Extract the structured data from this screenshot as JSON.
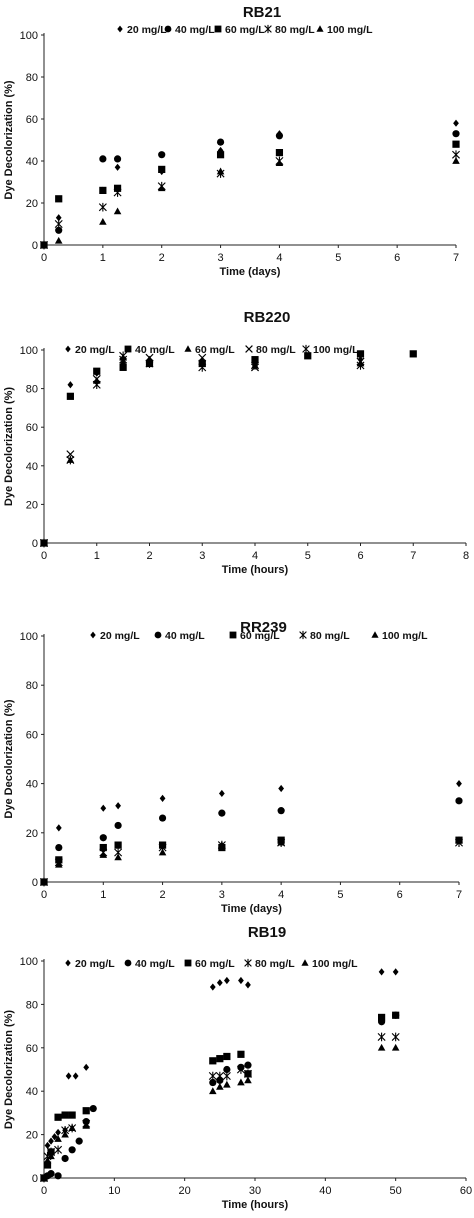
{
  "chart_data": [
    {
      "type": "scatter",
      "title": "RB21",
      "xlabel": "Time (days)",
      "ylabel": "Dye Decolorization (%)",
      "xlim": [
        0,
        7
      ],
      "ylim": [
        0,
        100
      ],
      "xticks": [
        0,
        1,
        2,
        3,
        4,
        5,
        6,
        7
      ],
      "yticks": [
        0,
        20,
        40,
        60,
        80,
        100
      ],
      "legend_position": "top",
      "series": [
        {
          "name": "20 mg/L",
          "marker": "diamond",
          "points": [
            [
              0,
              0
            ],
            [
              0.25,
              13
            ],
            [
              1,
              26
            ],
            [
              1.25,
              37
            ],
            [
              2,
              35
            ],
            [
              3,
              45
            ],
            [
              4,
              53
            ],
            [
              7,
              58
            ]
          ]
        },
        {
          "name": "40 mg/L",
          "marker": "circle",
          "points": [
            [
              0,
              0
            ],
            [
              0.25,
              7
            ],
            [
              1,
              41
            ],
            [
              1.25,
              41
            ],
            [
              2,
              43
            ],
            [
              3,
              49
            ],
            [
              4,
              52
            ],
            [
              7,
              53
            ]
          ]
        },
        {
          "name": "60 mg/L",
          "marker": "square",
          "points": [
            [
              0,
              0
            ],
            [
              0.25,
              22
            ],
            [
              1,
              26
            ],
            [
              1.25,
              27
            ],
            [
              2,
              36
            ],
            [
              3,
              43
            ],
            [
              4,
              44
            ],
            [
              7,
              48
            ]
          ]
        },
        {
          "name": "80 mg/L",
          "marker": "asterisk",
          "points": [
            [
              0,
              0
            ],
            [
              0.25,
              10
            ],
            [
              1,
              18
            ],
            [
              1.25,
              25
            ],
            [
              2,
              28
            ],
            [
              3,
              34
            ],
            [
              4,
              40
            ],
            [
              7,
              43
            ]
          ]
        },
        {
          "name": "100 mg/L",
          "marker": "triangle",
          "points": [
            [
              0,
              0
            ],
            [
              0.25,
              2
            ],
            [
              1,
              11
            ],
            [
              1.25,
              16
            ],
            [
              2,
              27
            ],
            [
              3,
              35
            ],
            [
              4,
              39
            ],
            [
              7,
              40
            ]
          ]
        }
      ]
    },
    {
      "type": "scatter",
      "title": "RB220",
      "xlabel": "Time (hours)",
      "ylabel": "Dye Decolorization (%)",
      "xlim": [
        0,
        8
      ],
      "ylim": [
        0,
        100
      ],
      "xticks": [
        0,
        1,
        2,
        3,
        4,
        5,
        6,
        7,
        8
      ],
      "yticks": [
        0,
        20,
        40,
        60,
        80,
        100
      ],
      "legend_position": "top",
      "series": [
        {
          "name": "20 mg/L",
          "marker": "diamond",
          "points": [
            [
              0,
              0
            ],
            [
              0.5,
              82
            ],
            [
              1,
              88
            ],
            [
              1.5,
              93
            ],
            [
              2,
              95
            ],
            [
              3,
              94
            ],
            [
              4,
              93
            ],
            [
              6,
              95
            ]
          ]
        },
        {
          "name": "40 mg/L",
          "marker": "square",
          "points": [
            [
              0,
              0
            ],
            [
              0.5,
              76
            ],
            [
              1,
              89
            ],
            [
              1.5,
              91
            ],
            [
              2,
              93
            ],
            [
              3,
              93
            ],
            [
              4,
              95
            ],
            [
              5,
              97
            ],
            [
              6,
              98
            ],
            [
              7,
              98
            ]
          ]
        },
        {
          "name": "60 mg/L",
          "marker": "triangle",
          "points": [
            [
              0,
              0
            ],
            [
              0.5,
              43
            ],
            [
              1,
              84
            ],
            [
              1.5,
              96
            ],
            [
              2,
              95
            ],
            [
              3,
              93
            ],
            [
              4,
              92
            ],
            [
              6,
              93
            ]
          ]
        },
        {
          "name": "80 mg/L",
          "marker": "x",
          "points": [
            [
              0,
              0
            ],
            [
              0.5,
              46
            ],
            [
              1,
              85
            ],
            [
              1.5,
              95
            ],
            [
              2,
              96
            ],
            [
              3,
              96
            ],
            [
              4,
              91
            ],
            [
              6,
              94
            ]
          ]
        },
        {
          "name": "100 mg/L",
          "marker": "asterisk",
          "points": [
            [
              0,
              0
            ],
            [
              0.5,
              43
            ],
            [
              1,
              82
            ],
            [
              1.5,
              97
            ],
            [
              2,
              93
            ],
            [
              3,
              91
            ],
            [
              4,
              92
            ],
            [
              6,
              92
            ]
          ]
        }
      ]
    },
    {
      "type": "scatter",
      "title": "RR239",
      "xlabel": "Time (days)",
      "ylabel": "Dye Decolorization (%)",
      "xlim": [
        0,
        7
      ],
      "ylim": [
        0,
        100
      ],
      "xticks": [
        0,
        1,
        2,
        3,
        4,
        5,
        6,
        7
      ],
      "yticks": [
        0,
        20,
        40,
        60,
        80,
        100
      ],
      "legend_position": "top",
      "series": [
        {
          "name": "20 mg/L",
          "marker": "diamond",
          "points": [
            [
              0,
              0
            ],
            [
              0.25,
              22
            ],
            [
              1,
              30
            ],
            [
              1.25,
              31
            ],
            [
              2,
              34
            ],
            [
              3,
              36
            ],
            [
              4,
              38
            ],
            [
              7,
              40
            ]
          ]
        },
        {
          "name": "40 mg/L",
          "marker": "circle",
          "points": [
            [
              0,
              0
            ],
            [
              0.25,
              14
            ],
            [
              1,
              18
            ],
            [
              1.25,
              23
            ],
            [
              2,
              26
            ],
            [
              3,
              28
            ],
            [
              4,
              29
            ],
            [
              7,
              33
            ]
          ]
        },
        {
          "name": "60 mg/L",
          "marker": "square",
          "points": [
            [
              0,
              0
            ],
            [
              0.25,
              9
            ],
            [
              1,
              14
            ],
            [
              1.25,
              15
            ],
            [
              2,
              15
            ],
            [
              3,
              14
            ],
            [
              4,
              17
            ],
            [
              7,
              17
            ]
          ]
        },
        {
          "name": "80 mg/L",
          "marker": "asterisk",
          "points": [
            [
              0,
              0
            ],
            [
              0.25,
              8
            ],
            [
              1,
              12
            ],
            [
              1.25,
              12
            ],
            [
              2,
              14
            ],
            [
              3,
              15
            ],
            [
              4,
              16
            ],
            [
              7,
              16
            ]
          ]
        },
        {
          "name": "100 mg/L",
          "marker": "triangle",
          "points": [
            [
              0,
              0
            ],
            [
              0.25,
              7
            ],
            [
              1,
              11
            ],
            [
              1.25,
              10
            ],
            [
              2,
              12
            ],
            [
              3,
              15
            ],
            [
              4,
              16
            ],
            [
              7,
              17
            ]
          ]
        }
      ]
    },
    {
      "type": "scatter",
      "title": "RB19",
      "xlabel": "Time (hours)",
      "ylabel": "Dye Decolorization (%)",
      "xlim": [
        0,
        60
      ],
      "ylim": [
        0,
        100
      ],
      "xticks": [
        0,
        10,
        20,
        30,
        40,
        50,
        60
      ],
      "yticks": [
        0,
        20,
        40,
        60,
        80,
        100
      ],
      "legend_position": "top",
      "series": [
        {
          "name": "20 mg/L",
          "marker": "diamond",
          "points": [
            [
              0,
              0
            ],
            [
              0.5,
              15
            ],
            [
              1,
              17
            ],
            [
              1.5,
              19
            ],
            [
              2,
              21
            ],
            [
              3,
              22
            ],
            [
              3.5,
              47
            ],
            [
              4.5,
              47
            ],
            [
              6,
              51
            ],
            [
              24,
              88
            ],
            [
              25,
              90
            ],
            [
              26,
              91
            ],
            [
              28,
              91
            ],
            [
              29,
              89
            ],
            [
              48,
              95
            ],
            [
              50,
              95
            ]
          ]
        },
        {
          "name": "40 mg/L",
          "marker": "circle",
          "points": [
            [
              0,
              0
            ],
            [
              0.5,
              1
            ],
            [
              1,
              2
            ],
            [
              2,
              1
            ],
            [
              3,
              9
            ],
            [
              4,
              13
            ],
            [
              5,
              17
            ],
            [
              6,
              26
            ],
            [
              7,
              32
            ],
            [
              24,
              44
            ],
            [
              25,
              45
            ],
            [
              26,
              50
            ],
            [
              28,
              51
            ],
            [
              29,
              52
            ],
            [
              48,
              72
            ],
            [
              50,
              75
            ]
          ]
        },
        {
          "name": "60 mg/L",
          "marker": "square",
          "points": [
            [
              0,
              0
            ],
            [
              0.5,
              6
            ],
            [
              1,
              12
            ],
            [
              2,
              28
            ],
            [
              3,
              29
            ],
            [
              4,
              29
            ],
            [
              6,
              31
            ],
            [
              24,
              54
            ],
            [
              25,
              55
            ],
            [
              26,
              56
            ],
            [
              28,
              57
            ],
            [
              29,
              48
            ],
            [
              48,
              74
            ],
            [
              50,
              75
            ]
          ]
        },
        {
          "name": "80 mg/L",
          "marker": "asterisk",
          "points": [
            [
              0,
              0
            ],
            [
              0.5,
              10
            ],
            [
              1,
              12
            ],
            [
              2,
              13
            ],
            [
              3,
              22
            ],
            [
              4,
              23
            ],
            [
              6,
              25
            ],
            [
              24,
              47
            ],
            [
              25,
              47
            ],
            [
              26,
              47
            ],
            [
              28,
              50
            ],
            [
              29,
              48
            ],
            [
              48,
              65
            ],
            [
              50,
              65
            ]
          ]
        },
        {
          "name": "100 mg/L",
          "marker": "triangle",
          "points": [
            [
              0,
              0
            ],
            [
              0.5,
              8
            ],
            [
              1,
              10
            ],
            [
              2,
              18
            ],
            [
              3,
              20
            ],
            [
              4,
              23
            ],
            [
              6,
              24
            ],
            [
              24,
              40
            ],
            [
              25,
              42
            ],
            [
              26,
              43
            ],
            [
              28,
              44
            ],
            [
              29,
              45
            ],
            [
              48,
              60
            ],
            [
              50,
              60
            ]
          ]
        }
      ]
    }
  ]
}
